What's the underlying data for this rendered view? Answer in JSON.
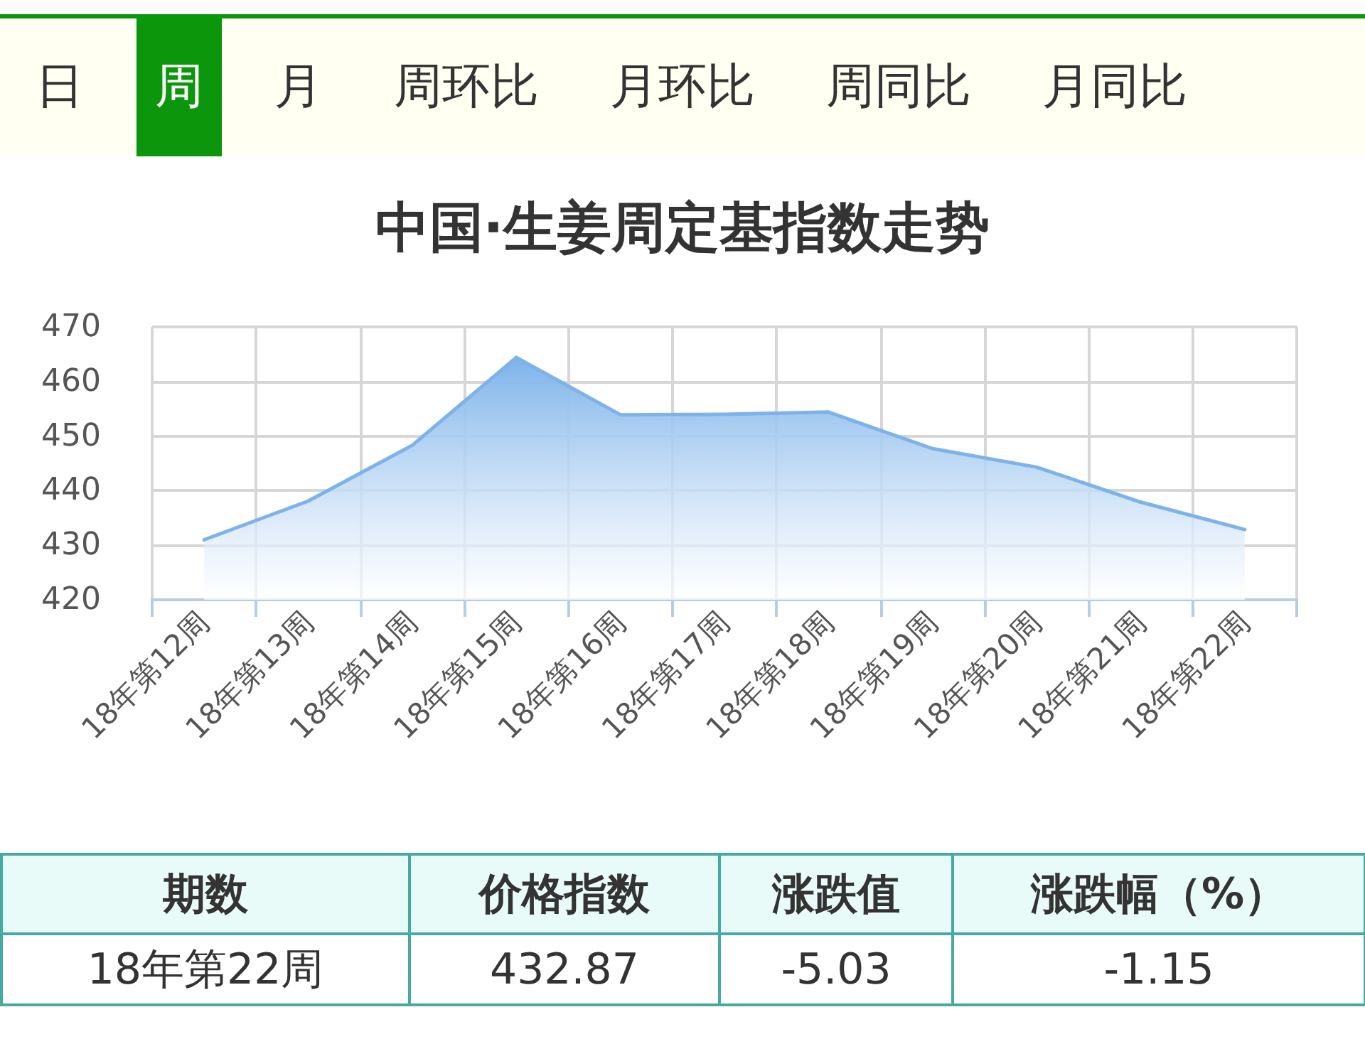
{
  "chart_data": {
    "type": "area",
    "title": "中国·生姜周定基指数走势",
    "categories": [
      "18年第12周",
      "18年第13周",
      "18年第14周",
      "18年第15周",
      "18年第16周",
      "18年第17周",
      "18年第18周",
      "18年第19周",
      "18年第20周",
      "18年第21周",
      "18年第22周"
    ],
    "values": [
      431.0,
      438.1,
      448.3,
      464.4,
      453.9,
      454.0,
      454.4,
      447.7,
      444.3,
      437.9,
      432.87
    ],
    "color": "#7db3ea",
    "marker": "none",
    "line_style": "solid",
    "ylim": [
      420,
      470
    ],
    "yticks": [
      420,
      430,
      440,
      450,
      460,
      470
    ],
    "grid": true,
    "annotations": [
      "日",
      "周",
      "月",
      "周环比",
      "月环比",
      "周同比",
      "月同比",
      "期数",
      "价格指数",
      "涨跌值",
      "涨跌幅（%）",
      "18年第22周",
      "432.87",
      "-5.03",
      "-1.15"
    ]
  }
}
